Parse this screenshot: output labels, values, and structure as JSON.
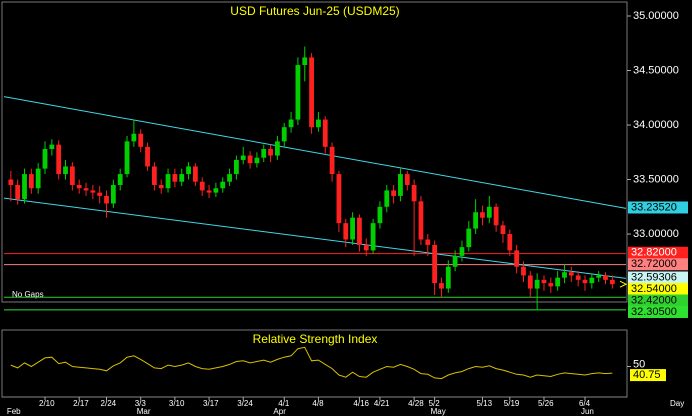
{
  "chart_data": {
    "type": "candlestick",
    "title": "USD Futures Jun-25 (USDM25)",
    "note": "No Gaps",
    "x_unit": "Day",
    "up_color": "#00d000",
    "down_color": "#ff2020",
    "xlim": [
      -1,
      90
    ],
    "ylim": [
      32.23,
      35.11
    ],
    "xticks": [
      {
        "value": 5,
        "label": "2/10"
      },
      {
        "value": 10,
        "label": "2/17"
      },
      {
        "value": 14,
        "label": "2/24"
      },
      {
        "value": 19,
        "label": "3/3"
      },
      {
        "value": 24,
        "label": "3/10"
      },
      {
        "value": 29,
        "label": "3/17"
      },
      {
        "value": 34,
        "label": "3/24"
      },
      {
        "value": 40,
        "label": "4/1"
      },
      {
        "value": 45,
        "label": "4/8"
      },
      {
        "value": 51,
        "label": "4/16"
      },
      {
        "value": 54,
        "label": "4/21"
      },
      {
        "value": 59,
        "label": "4/28"
      },
      {
        "value": 62,
        "label": "5/2"
      },
      {
        "value": 69,
        "label": "5/13"
      },
      {
        "value": 73,
        "label": "5/19"
      },
      {
        "value": 78,
        "label": "5/26"
      },
      {
        "value": 84,
        "label": "6/4"
      }
    ],
    "months": [
      {
        "value": 0,
        "label": "Feb"
      },
      {
        "value": 19,
        "label": "Mar"
      },
      {
        "value": 39,
        "label": "Apr"
      },
      {
        "value": 62,
        "label": "May"
      },
      {
        "value": 84,
        "label": "Jun"
      }
    ],
    "yticks": [
      {
        "value": 35,
        "label": "35.00000"
      },
      {
        "value": 34.5,
        "label": "34.50000"
      },
      {
        "value": 34,
        "label": "34.00000"
      },
      {
        "value": 33.5,
        "label": "33.50000"
      },
      {
        "value": 33,
        "label": "33.00000"
      }
    ],
    "open": [
      33.5,
      33.45,
      33.32,
      33.55,
      33.42,
      33.6,
      33.78,
      33.82,
      33.55,
      33.62,
      33.45,
      33.42,
      33.4,
      33.38,
      33.35,
      33.28,
      33.45,
      33.55,
      33.85,
      33.92,
      33.8,
      33.62,
      33.45,
      33.42,
      33.55,
      33.48,
      33.55,
      33.62,
      33.48,
      33.4,
      33.38,
      33.42,
      33.48,
      33.55,
      33.68,
      33.72,
      33.65,
      33.7,
      33.78,
      33.72,
      33.85,
      33.98,
      34.05,
      34.55,
      34.62,
      33.98,
      34.05,
      33.8,
      33.55,
      33.1,
      32.95,
      33.15,
      32.9,
      32.85,
      33.1,
      33.25,
      33.4,
      33.35,
      33.55,
      33.45,
      33.3,
      32.95,
      32.9,
      32.55,
      32.5,
      32.7,
      32.8,
      32.88,
      33.05,
      33.2,
      33.15,
      33.25,
      33.08,
      33.0,
      32.85,
      32.7,
      32.62,
      32.5,
      32.58,
      32.55,
      32.52,
      32.6,
      32.65,
      32.62,
      32.58,
      32.55,
      32.6,
      32.62,
      32.58
    ],
    "high": [
      33.58,
      33.5,
      33.6,
      33.6,
      33.65,
      33.85,
      33.87,
      33.86,
      33.68,
      33.66,
      33.5,
      33.47,
      33.45,
      33.44,
      33.4,
      33.5,
      33.6,
      33.9,
      34.05,
      33.96,
      33.84,
      33.66,
      33.5,
      33.6,
      33.6,
      33.6,
      33.66,
      33.65,
      33.52,
      33.45,
      33.47,
      33.52,
      33.6,
      33.72,
      33.8,
      33.76,
      33.75,
      33.82,
      33.82,
      33.9,
      34.02,
      34.12,
      34.62,
      34.72,
      34.66,
      34.12,
      34.08,
      33.84,
      33.58,
      33.14,
      33.2,
      33.18,
      32.96,
      33.14,
      33.3,
      33.45,
      33.45,
      33.6,
      33.58,
      33.5,
      33.35,
      33.0,
      32.94,
      32.6,
      32.76,
      32.85,
      32.94,
      33.12,
      33.32,
      33.26,
      33.35,
      33.28,
      33.12,
      33.04,
      32.9,
      32.75,
      32.66,
      32.64,
      32.62,
      32.6,
      32.66,
      32.72,
      32.7,
      32.66,
      32.62,
      32.64,
      32.66,
      32.65,
      32.62
    ],
    "low": [
      33.3,
      33.27,
      33.28,
      33.37,
      33.37,
      33.55,
      33.72,
      33.5,
      33.5,
      33.4,
      33.37,
      33.35,
      33.32,
      33.28,
      33.15,
      33.24,
      33.4,
      33.52,
      33.8,
      33.75,
      33.58,
      33.4,
      33.37,
      33.38,
      33.43,
      33.44,
      33.5,
      33.44,
      33.35,
      33.33,
      33.34,
      33.38,
      33.44,
      33.5,
      33.64,
      33.6,
      33.61,
      33.66,
      33.66,
      33.68,
      33.8,
      33.93,
      34.0,
      34.4,
      33.92,
      33.94,
      33.74,
      33.48,
      33.02,
      32.88,
      32.9,
      32.84,
      32.8,
      32.82,
      33.05,
      33.2,
      33.28,
      33.3,
      33.4,
      32.8,
      32.9,
      32.8,
      32.44,
      32.42,
      32.46,
      32.66,
      32.75,
      32.84,
      33.0,
      33.08,
      33.1,
      33.02,
      32.92,
      32.8,
      32.64,
      32.56,
      32.42,
      32.3,
      32.48,
      32.46,
      32.48,
      32.55,
      32.56,
      32.52,
      32.48,
      32.5,
      32.56,
      32.54,
      32.5
    ],
    "close": [
      33.45,
      33.32,
      33.55,
      33.42,
      33.6,
      33.78,
      33.82,
      33.55,
      33.62,
      33.45,
      33.42,
      33.4,
      33.38,
      33.35,
      33.28,
      33.45,
      33.55,
      33.85,
      33.92,
      33.8,
      33.62,
      33.45,
      33.42,
      33.55,
      33.48,
      33.55,
      33.62,
      33.48,
      33.4,
      33.38,
      33.42,
      33.48,
      33.55,
      33.68,
      33.72,
      33.65,
      33.7,
      33.78,
      33.72,
      33.85,
      33.98,
      34.05,
      34.55,
      34.62,
      33.98,
      34.05,
      33.8,
      33.55,
      33.1,
      32.95,
      33.15,
      32.9,
      32.85,
      33.1,
      33.25,
      33.4,
      33.35,
      33.55,
      33.45,
      33.3,
      32.95,
      32.9,
      32.55,
      32.5,
      32.7,
      32.8,
      32.88,
      33.05,
      33.2,
      33.15,
      33.25,
      33.08,
      33.0,
      32.85,
      32.7,
      32.62,
      32.5,
      32.58,
      32.55,
      32.52,
      32.6,
      32.65,
      32.62,
      32.58,
      32.55,
      32.6,
      32.62,
      32.58,
      32.54
    ],
    "last_label": "32.54000",
    "last_color": "#ffff00",
    "channels": [
      {
        "color": "#40d8e8",
        "start": {
          "x": -1,
          "y": 34.26
        },
        "end": {
          "x": 90,
          "y": 33.2352
        },
        "label": "33.23520"
      },
      {
        "color": "#40d8e8",
        "start": {
          "x": -1,
          "y": 33.33
        },
        "end": {
          "x": 90,
          "y": 32.59306
        },
        "label": "32.59306"
      }
    ],
    "levels": [
      {
        "value": 32.82,
        "label": "32.82000",
        "color": "#ff2020"
      },
      {
        "value": 32.72,
        "label": "32.72000",
        "color": "#ff8080"
      },
      {
        "value": 32.42,
        "label": "32.42000",
        "color": "#30d030"
      },
      {
        "value": 32.305,
        "label": "32.30500",
        "color": "#30e030"
      }
    ],
    "rsi": {
      "title": "Relative Strength Index",
      "color": "#d8c000",
      "ylim": [
        10,
        97
      ],
      "yticks": [
        50
      ],
      "values": [
        52,
        48,
        55,
        50,
        56,
        62,
        63,
        54,
        56,
        50,
        49,
        48,
        47,
        46,
        44,
        51,
        55,
        63,
        65,
        60,
        54,
        48,
        47,
        52,
        50,
        52,
        55,
        50,
        47,
        46,
        48,
        50,
        53,
        57,
        58,
        55,
        57,
        59,
        56,
        60,
        63,
        65,
        75,
        77,
        58,
        59,
        53,
        47,
        38,
        35,
        42,
        36,
        35,
        42,
        46,
        50,
        49,
        53,
        50,
        46,
        40,
        39,
        34,
        33,
        38,
        41,
        43,
        47,
        50,
        49,
        51,
        47,
        45,
        42,
        39,
        38,
        35,
        38,
        37,
        36,
        39,
        41,
        40,
        39,
        38,
        40,
        41,
        40,
        40.75
      ]
    }
  }
}
